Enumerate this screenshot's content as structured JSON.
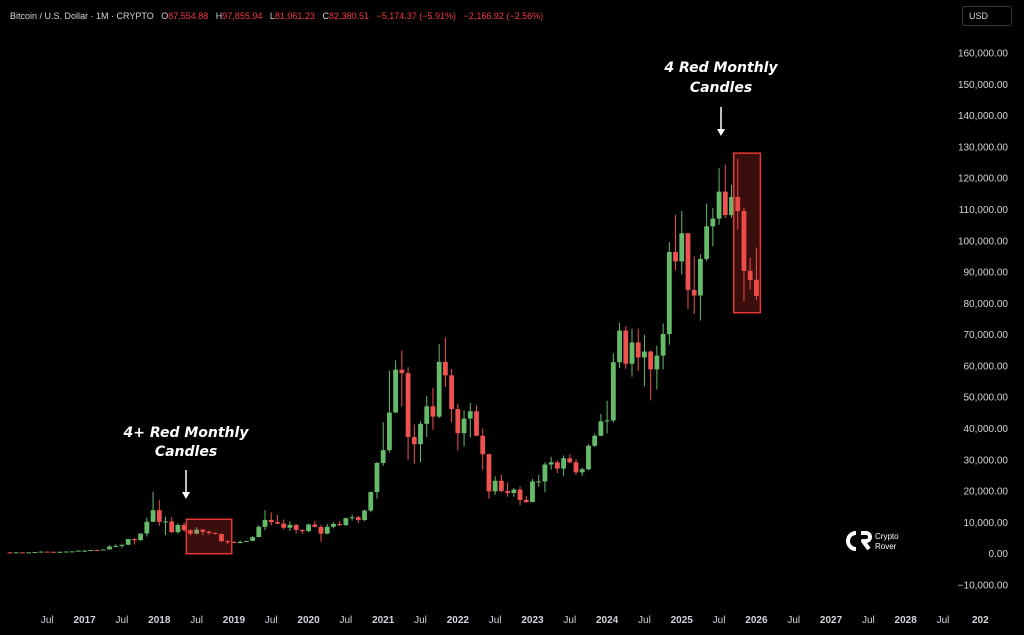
{
  "header": {
    "symbol": "Bitcoin / U.S. Dollar · 1M · CRYPTO",
    "open_key": "O",
    "open": "87,554.88",
    "high_key": "H",
    "high": "97,855.94",
    "low_key": "L",
    "low": "81,061.23",
    "close_key": "C",
    "close": "82,380.51",
    "change": "−5,174.37 (−5.91%)",
    "change2": "−2,166.92 (−2.56%)"
  },
  "currency": "USD",
  "annotations": {
    "left_line1": "4+ Red Monthly",
    "left_line2": "Candles",
    "right_line1": "4 Red Monthly",
    "right_line2": "Candles"
  },
  "watermark": {
    "line1": "Crypto",
    "line2": "Rover"
  },
  "colors": {
    "up": "#66bb6a",
    "down": "#ef5350",
    "box": "#e53935",
    "background": "#000000"
  },
  "chart_data": {
    "type": "candlestick",
    "interval": "1M",
    "y_axis_labels": [
      "160,000.00",
      "150,000.00",
      "140,000.00",
      "130,000.00",
      "120,000.00",
      "110,000.00",
      "100,000.00",
      "90,000.00",
      "80,000.00",
      "70,000.00",
      "60,000.00",
      "50,000.00",
      "40,000.00",
      "30,000.00",
      "20,000.00",
      "10,000.00",
      "0.00",
      "−10,000.00"
    ],
    "ylim": [
      -10000,
      160000
    ],
    "x_axis_labels": [
      {
        "t": "Jul",
        "year": false
      },
      {
        "t": "2017",
        "year": true
      },
      {
        "t": "Jul",
        "year": false
      },
      {
        "t": "2018",
        "year": true
      },
      {
        "t": "Jul",
        "year": false
      },
      {
        "t": "2019",
        "year": true
      },
      {
        "t": "Jul",
        "year": false
      },
      {
        "t": "2020",
        "year": true
      },
      {
        "t": "Jul",
        "year": false
      },
      {
        "t": "2021",
        "year": true
      },
      {
        "t": "Jul",
        "year": false
      },
      {
        "t": "2022",
        "year": true
      },
      {
        "t": "Jul",
        "year": false
      },
      {
        "t": "2023",
        "year": true
      },
      {
        "t": "Jul",
        "year": false
      },
      {
        "t": "2024",
        "year": true
      },
      {
        "t": "Jul",
        "year": false
      },
      {
        "t": "2025",
        "year": true
      },
      {
        "t": "Jul",
        "year": false
      },
      {
        "t": "2026",
        "year": true
      },
      {
        "t": "Jul",
        "year": false
      },
      {
        "t": "2027",
        "year": true
      },
      {
        "t": "Jul",
        "year": false
      },
      {
        "t": "2028",
        "year": true
      },
      {
        "t": "Jul",
        "year": false
      },
      {
        "t": "202",
        "year": true
      }
    ],
    "candles": [
      {
        "m": "2016-01",
        "o": 430,
        "h": 460,
        "l": 360,
        "c": 370
      },
      {
        "m": "2016-02",
        "o": 370,
        "h": 440,
        "l": 370,
        "c": 435
      },
      {
        "m": "2016-03",
        "o": 435,
        "h": 440,
        "l": 410,
        "c": 415
      },
      {
        "m": "2016-04",
        "o": 415,
        "h": 470,
        "l": 415,
        "c": 450
      },
      {
        "m": "2016-05",
        "o": 450,
        "h": 550,
        "l": 440,
        "c": 530
      },
      {
        "m": "2016-06",
        "o": 530,
        "h": 780,
        "l": 530,
        "c": 670
      },
      {
        "m": "2016-07",
        "o": 670,
        "h": 700,
        "l": 600,
        "c": 625
      },
      {
        "m": "2016-08",
        "o": 625,
        "h": 630,
        "l": 530,
        "c": 575
      },
      {
        "m": "2016-09",
        "o": 575,
        "h": 620,
        "l": 570,
        "c": 610
      },
      {
        "m": "2016-10",
        "o": 610,
        "h": 720,
        "l": 600,
        "c": 700
      },
      {
        "m": "2016-11",
        "o": 700,
        "h": 750,
        "l": 690,
        "c": 745
      },
      {
        "m": "2016-12",
        "o": 745,
        "h": 980,
        "l": 740,
        "c": 965
      },
      {
        "m": "2017-01",
        "o": 965,
        "h": 1150,
        "l": 750,
        "c": 965
      },
      {
        "m": "2017-02",
        "o": 965,
        "h": 1200,
        "l": 920,
        "c": 1190
      },
      {
        "m": "2017-03",
        "o": 1190,
        "h": 1300,
        "l": 890,
        "c": 1080
      },
      {
        "m": "2017-04",
        "o": 1080,
        "h": 1400,
        "l": 1080,
        "c": 1350
      },
      {
        "m": "2017-05",
        "o": 1350,
        "h": 2700,
        "l": 1350,
        "c": 2300
      },
      {
        "m": "2017-06",
        "o": 2300,
        "h": 3000,
        "l": 2100,
        "c": 2500
      },
      {
        "m": "2017-07",
        "o": 2500,
        "h": 2900,
        "l": 1800,
        "c": 2870
      },
      {
        "m": "2017-08",
        "o": 2870,
        "h": 4700,
        "l": 2700,
        "c": 4700
      },
      {
        "m": "2017-09",
        "o": 4700,
        "h": 5000,
        "l": 2970,
        "c": 4340
      },
      {
        "m": "2017-10",
        "o": 4340,
        "h": 6500,
        "l": 4100,
        "c": 6450
      },
      {
        "m": "2017-11",
        "o": 6450,
        "h": 11500,
        "l": 5500,
        "c": 10200
      },
      {
        "m": "2017-12",
        "o": 10200,
        "h": 19800,
        "l": 10100,
        "c": 13900
      },
      {
        "m": "2018-01",
        "o": 13900,
        "h": 17200,
        "l": 9000,
        "c": 10200
      },
      {
        "m": "2018-02",
        "o": 10200,
        "h": 11800,
        "l": 6000,
        "c": 10300
      },
      {
        "m": "2018-03",
        "o": 10300,
        "h": 11700,
        "l": 6600,
        "c": 6900
      },
      {
        "m": "2018-04",
        "o": 6900,
        "h": 9700,
        "l": 6400,
        "c": 9200
      },
      {
        "m": "2018-05",
        "o": 9200,
        "h": 10000,
        "l": 7000,
        "c": 7500
      },
      {
        "m": "2018-06",
        "o": 7500,
        "h": 7800,
        "l": 5800,
        "c": 6400
      },
      {
        "m": "2018-07",
        "o": 6400,
        "h": 8500,
        "l": 6100,
        "c": 7700
      },
      {
        "m": "2018-08",
        "o": 7700,
        "h": 7800,
        "l": 5900,
        "c": 7000
      },
      {
        "m": "2018-09",
        "o": 7000,
        "h": 7400,
        "l": 6100,
        "c": 6600
      },
      {
        "m": "2018-10",
        "o": 6600,
        "h": 6900,
        "l": 6200,
        "c": 6300
      },
      {
        "m": "2018-11",
        "o": 6300,
        "h": 6500,
        "l": 3700,
        "c": 4000
      },
      {
        "m": "2018-12",
        "o": 4000,
        "h": 4300,
        "l": 3100,
        "c": 3700
      },
      {
        "m": "2019-01",
        "o": 3700,
        "h": 4100,
        "l": 3400,
        "c": 3400
      },
      {
        "m": "2019-02",
        "o": 3400,
        "h": 4200,
        "l": 3400,
        "c": 3800
      },
      {
        "m": "2019-03",
        "o": 3800,
        "h": 4100,
        "l": 3800,
        "c": 4100
      },
      {
        "m": "2019-04",
        "o": 4100,
        "h": 5600,
        "l": 4100,
        "c": 5300
      },
      {
        "m": "2019-05",
        "o": 5300,
        "h": 9100,
        "l": 5300,
        "c": 8600
      },
      {
        "m": "2019-06",
        "o": 8600,
        "h": 13900,
        "l": 7500,
        "c": 10800
      },
      {
        "m": "2019-07",
        "o": 10800,
        "h": 13200,
        "l": 9100,
        "c": 10100
      },
      {
        "m": "2019-08",
        "o": 10100,
        "h": 12300,
        "l": 9400,
        "c": 9600
      },
      {
        "m": "2019-09",
        "o": 9600,
        "h": 10900,
        "l": 7700,
        "c": 8300
      },
      {
        "m": "2019-10",
        "o": 8300,
        "h": 10400,
        "l": 7300,
        "c": 9200
      },
      {
        "m": "2019-11",
        "o": 9200,
        "h": 9500,
        "l": 6500,
        "c": 7600
      },
      {
        "m": "2019-12",
        "o": 7600,
        "h": 7800,
        "l": 6400,
        "c": 7200
      },
      {
        "m": "2020-01",
        "o": 7200,
        "h": 9600,
        "l": 6900,
        "c": 9350
      },
      {
        "m": "2020-02",
        "o": 9350,
        "h": 10500,
        "l": 8400,
        "c": 8550
      },
      {
        "m": "2020-03",
        "o": 8550,
        "h": 9200,
        "l": 3800,
        "c": 6400
      },
      {
        "m": "2020-04",
        "o": 6400,
        "h": 9500,
        "l": 6200,
        "c": 8600
      },
      {
        "m": "2020-05",
        "o": 8600,
        "h": 10100,
        "l": 8100,
        "c": 9500
      },
      {
        "m": "2020-06",
        "o": 9500,
        "h": 10400,
        "l": 8900,
        "c": 9140
      },
      {
        "m": "2020-07",
        "o": 9140,
        "h": 11500,
        "l": 8900,
        "c": 11350
      },
      {
        "m": "2020-08",
        "o": 11350,
        "h": 12500,
        "l": 10600,
        "c": 11650
      },
      {
        "m": "2020-09",
        "o": 11650,
        "h": 12100,
        "l": 9800,
        "c": 10780
      },
      {
        "m": "2020-10",
        "o": 10780,
        "h": 14100,
        "l": 10400,
        "c": 13800
      },
      {
        "m": "2020-11",
        "o": 13800,
        "h": 19900,
        "l": 13200,
        "c": 19700
      },
      {
        "m": "2020-12",
        "o": 19700,
        "h": 29300,
        "l": 17600,
        "c": 29000
      },
      {
        "m": "2021-01",
        "o": 29000,
        "h": 42000,
        "l": 28100,
        "c": 33100
      },
      {
        "m": "2021-02",
        "o": 33100,
        "h": 58400,
        "l": 32300,
        "c": 45100
      },
      {
        "m": "2021-03",
        "o": 45100,
        "h": 61800,
        "l": 45000,
        "c": 58800
      },
      {
        "m": "2021-04",
        "o": 58800,
        "h": 64900,
        "l": 47000,
        "c": 57700
      },
      {
        "m": "2021-05",
        "o": 57700,
        "h": 59600,
        "l": 30000,
        "c": 37300
      },
      {
        "m": "2021-06",
        "o": 37300,
        "h": 41300,
        "l": 28800,
        "c": 35000
      },
      {
        "m": "2021-07",
        "o": 35000,
        "h": 42300,
        "l": 29300,
        "c": 41500
      },
      {
        "m": "2021-08",
        "o": 41500,
        "h": 50500,
        "l": 37300,
        "c": 47100
      },
      {
        "m": "2021-09",
        "o": 47100,
        "h": 52900,
        "l": 39600,
        "c": 43800
      },
      {
        "m": "2021-10",
        "o": 43800,
        "h": 67000,
        "l": 43300,
        "c": 61300
      },
      {
        "m": "2021-11",
        "o": 61300,
        "h": 69000,
        "l": 53300,
        "c": 57000
      },
      {
        "m": "2021-12",
        "o": 57000,
        "h": 59100,
        "l": 42000,
        "c": 46200
      },
      {
        "m": "2022-01",
        "o": 46200,
        "h": 47900,
        "l": 32900,
        "c": 38500
      },
      {
        "m": "2022-02",
        "o": 38500,
        "h": 45800,
        "l": 34300,
        "c": 43200
      },
      {
        "m": "2022-03",
        "o": 43200,
        "h": 48200,
        "l": 37200,
        "c": 45500
      },
      {
        "m": "2022-04",
        "o": 45500,
        "h": 47400,
        "l": 37600,
        "c": 37700
      },
      {
        "m": "2022-05",
        "o": 37700,
        "h": 40000,
        "l": 26700,
        "c": 31800
      },
      {
        "m": "2022-06",
        "o": 31800,
        "h": 31900,
        "l": 17600,
        "c": 19900
      },
      {
        "m": "2022-07",
        "o": 19900,
        "h": 24700,
        "l": 18800,
        "c": 23300
      },
      {
        "m": "2022-08",
        "o": 23300,
        "h": 25200,
        "l": 19600,
        "c": 20000
      },
      {
        "m": "2022-09",
        "o": 20000,
        "h": 22800,
        "l": 18200,
        "c": 19400
      },
      {
        "m": "2022-10",
        "o": 19400,
        "h": 21000,
        "l": 18200,
        "c": 20500
      },
      {
        "m": "2022-11",
        "o": 20500,
        "h": 21500,
        "l": 15500,
        "c": 17200
      },
      {
        "m": "2022-12",
        "o": 17200,
        "h": 18400,
        "l": 16300,
        "c": 16500
      },
      {
        "m": "2023-01",
        "o": 16500,
        "h": 23900,
        "l": 16500,
        "c": 23100
      },
      {
        "m": "2023-02",
        "o": 23100,
        "h": 25200,
        "l": 21400,
        "c": 23100
      },
      {
        "m": "2023-03",
        "o": 23100,
        "h": 29200,
        "l": 19600,
        "c": 28500
      },
      {
        "m": "2023-04",
        "o": 28500,
        "h": 31000,
        "l": 26900,
        "c": 29200
      },
      {
        "m": "2023-05",
        "o": 29200,
        "h": 29800,
        "l": 25800,
        "c": 27200
      },
      {
        "m": "2023-06",
        "o": 27200,
        "h": 31400,
        "l": 24800,
        "c": 30500
      },
      {
        "m": "2023-07",
        "o": 30500,
        "h": 31800,
        "l": 28900,
        "c": 29200
      },
      {
        "m": "2023-08",
        "o": 29200,
        "h": 30200,
        "l": 25200,
        "c": 26000
      },
      {
        "m": "2023-09",
        "o": 26000,
        "h": 27500,
        "l": 24900,
        "c": 27000
      },
      {
        "m": "2023-10",
        "o": 27000,
        "h": 35000,
        "l": 26600,
        "c": 34500
      },
      {
        "m": "2023-11",
        "o": 34500,
        "h": 38400,
        "l": 34100,
        "c": 37700
      },
      {
        "m": "2023-12",
        "o": 37700,
        "h": 44700,
        "l": 37600,
        "c": 42300
      },
      {
        "m": "2024-01",
        "o": 42300,
        "h": 48900,
        "l": 38500,
        "c": 42600
      },
      {
        "m": "2024-02",
        "o": 42600,
        "h": 64000,
        "l": 41900,
        "c": 61200
      },
      {
        "m": "2024-03",
        "o": 61200,
        "h": 73800,
        "l": 59300,
        "c": 71300
      },
      {
        "m": "2024-04",
        "o": 71300,
        "h": 72700,
        "l": 59100,
        "c": 60700
      },
      {
        "m": "2024-05",
        "o": 60700,
        "h": 71900,
        "l": 56600,
        "c": 67500
      },
      {
        "m": "2024-06",
        "o": 67500,
        "h": 72000,
        "l": 58400,
        "c": 62700
      },
      {
        "m": "2024-07",
        "o": 62700,
        "h": 70000,
        "l": 53500,
        "c": 64600
      },
      {
        "m": "2024-08",
        "o": 64600,
        "h": 65000,
        "l": 49000,
        "c": 58900
      },
      {
        "m": "2024-09",
        "o": 58900,
        "h": 66500,
        "l": 52500,
        "c": 63300
      },
      {
        "m": "2024-10",
        "o": 63300,
        "h": 73600,
        "l": 58900,
        "c": 70200
      },
      {
        "m": "2024-11",
        "o": 70200,
        "h": 99600,
        "l": 66800,
        "c": 96400
      },
      {
        "m": "2024-12",
        "o": 96400,
        "h": 108300,
        "l": 90500,
        "c": 93400
      },
      {
        "m": "2025-01",
        "o": 93400,
        "h": 109500,
        "l": 89200,
        "c": 102400
      },
      {
        "m": "2025-02",
        "o": 102400,
        "h": 102500,
        "l": 78200,
        "c": 84300
      },
      {
        "m": "2025-03",
        "o": 84300,
        "h": 95000,
        "l": 76600,
        "c": 82500
      },
      {
        "m": "2025-04",
        "o": 82500,
        "h": 95700,
        "l": 74500,
        "c": 94200
      },
      {
        "m": "2025-05",
        "o": 94200,
        "h": 111900,
        "l": 93400,
        "c": 104600
      },
      {
        "m": "2025-06",
        "o": 104600,
        "h": 110500,
        "l": 98200,
        "c": 107100
      },
      {
        "m": "2025-07",
        "o": 107100,
        "h": 123200,
        "l": 105100,
        "c": 115700
      },
      {
        "m": "2025-08",
        "o": 115700,
        "h": 124400,
        "l": 107300,
        "c": 108200
      },
      {
        "m": "2025-09",
        "o": 108200,
        "h": 117900,
        "l": 107300,
        "c": 114000
      },
      {
        "m": "2025-10",
        "o": 114000,
        "h": 126200,
        "l": 103500,
        "c": 109500
      },
      {
        "m": "2025-11",
        "o": 109500,
        "h": 110700,
        "l": 80600,
        "c": 90400
      },
      {
        "m": "2025-12",
        "o": 90400,
        "h": 94600,
        "l": 84400,
        "c": 87500
      },
      {
        "m": "2026-01",
        "o": 87550,
        "h": 97860,
        "l": 81060,
        "c": 82380
      }
    ],
    "highlight_boxes": [
      {
        "from": "2018-06",
        "to": "2018-12",
        "low": 0,
        "high": 11000
      },
      {
        "from": "2025-10",
        "to": "2026-01",
        "low": 77000,
        "high": 128000
      }
    ]
  }
}
